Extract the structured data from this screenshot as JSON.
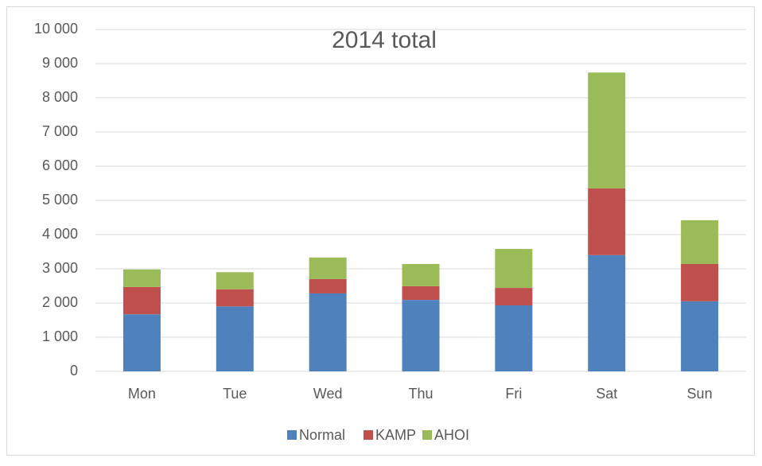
{
  "chart_data": {
    "type": "stacked_bar",
    "title": "2014  total",
    "categories": [
      "Mon",
      "Tue",
      "Wed",
      "Thu",
      "Fri",
      "Sat",
      "Sun"
    ],
    "series": [
      {
        "name": "Normal",
        "color": "#4f81bd",
        "values": [
          1670,
          1900,
          2280,
          2090,
          1930,
          3400,
          2050
        ]
      },
      {
        "name": "KAMP",
        "color": "#c0504d",
        "values": [
          800,
          500,
          420,
          400,
          510,
          1950,
          1090
        ]
      },
      {
        "name": "AHOI",
        "color": "#9bbb59",
        "values": [
          510,
          500,
          630,
          650,
          1140,
          3390,
          1280
        ]
      }
    ],
    "ylim": [
      0,
      10000
    ],
    "yticks": [
      0,
      {
        "value": 1000,
        "label": "1 000"
      },
      {
        "value": 2000,
        "label": "2 000"
      },
      {
        "value": 3000,
        "label": "3 000"
      },
      {
        "value": 4000,
        "label": "4 000"
      },
      {
        "value": 5000,
        "label": "5 000"
      },
      {
        "value": 6000,
        "label": "6 000"
      },
      {
        "value": 7000,
        "label": "7 000"
      },
      {
        "value": 8000,
        "label": "8 000"
      },
      {
        "value": 9000,
        "label": "9 000"
      },
      {
        "value": 10000,
        "label": "10 000"
      }
    ],
    "grid": true,
    "legend": "bottom"
  }
}
